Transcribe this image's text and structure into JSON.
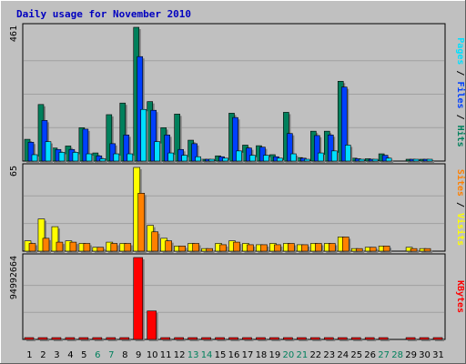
{
  "title": "Daily usage for November 2010",
  "colors": {
    "background": "#c0c0c0",
    "plot": "#c0c0c0",
    "title": "#0000c0",
    "hits": "#00805c",
    "files": "#0040ff",
    "pages": "#00e0ff",
    "visits": "#ffff00",
    "sites": "#ff8000",
    "kbytes": "#ff0000",
    "weekday": "#000000",
    "weekend": "#00805c"
  },
  "chart_data": [
    {
      "type": "bar",
      "title": "Daily usage for November 2010",
      "panel": "hits-files-pages",
      "label_parts": [
        "Pages",
        "Files",
        "Hits"
      ],
      "max_label": "461",
      "ylim": [
        0,
        461
      ],
      "categories": [
        "1",
        "2",
        "3",
        "4",
        "5",
        "6",
        "7",
        "8",
        "9",
        "10",
        "11",
        "12",
        "13",
        "14",
        "15",
        "16",
        "17",
        "18",
        "19",
        "20",
        "21",
        "22",
        "23",
        "24",
        "25",
        "26",
        "27",
        "28",
        "29",
        "30",
        "31"
      ],
      "series": [
        {
          "name": "Hits",
          "values": [
            75,
            195,
            45,
            52,
            115,
            28,
            160,
            200,
            461,
            205,
            115,
            162,
            72,
            5,
            18,
            165,
            55,
            53,
            22,
            168,
            12,
            103,
            103,
            275,
            10,
            8,
            25,
            0,
            6,
            5,
            0
          ]
        },
        {
          "name": "Files",
          "values": [
            65,
            140,
            40,
            40,
            110,
            18,
            60,
            90,
            360,
            175,
            90,
            40,
            60,
            5,
            15,
            150,
            45,
            48,
            15,
            95,
            10,
            88,
            90,
            255,
            8,
            5,
            20,
            0,
            5,
            3,
            0
          ]
        },
        {
          "name": "Pages",
          "values": [
            22,
            67,
            30,
            30,
            25,
            8,
            25,
            25,
            178,
            67,
            28,
            20,
            15,
            3,
            10,
            35,
            20,
            20,
            10,
            25,
            5,
            28,
            35,
            55,
            5,
            3,
            10,
            0,
            3,
            2,
            0
          ]
        }
      ]
    },
    {
      "type": "bar",
      "panel": "visits-sites",
      "label_parts": [
        "Sites",
        "Visits"
      ],
      "max_label": "65",
      "ylim": [
        0,
        65
      ],
      "categories": [
        "1",
        "2",
        "3",
        "4",
        "5",
        "6",
        "7",
        "8",
        "9",
        "10",
        "11",
        "12",
        "13",
        "14",
        "15",
        "16",
        "17",
        "18",
        "19",
        "20",
        "21",
        "22",
        "23",
        "24",
        "25",
        "26",
        "27",
        "28",
        "29",
        "30",
        "31"
      ],
      "series": [
        {
          "name": "Visits",
          "values": [
            8,
            25,
            19,
            8,
            6,
            3,
            7,
            6,
            65,
            20,
            10,
            4,
            6,
            2,
            6,
            8,
            6,
            5,
            6,
            6,
            5,
            6,
            6,
            11,
            2,
            3,
            4,
            0,
            3,
            2,
            0
          ]
        },
        {
          "name": "Sites",
          "values": [
            6,
            10,
            7,
            7,
            6,
            3,
            6,
            6,
            45,
            15,
            8,
            4,
            6,
            2,
            5,
            7,
            5,
            5,
            5,
            6,
            5,
            6,
            6,
            11,
            2,
            3,
            4,
            0,
            2,
            2,
            0
          ]
        }
      ]
    },
    {
      "type": "bar",
      "panel": "kbytes",
      "label_parts": [
        "KBytes"
      ],
      "max_label": "94992664",
      "ylim": [
        0,
        94992664
      ],
      "categories": [
        "1",
        "2",
        "3",
        "4",
        "5",
        "6",
        "7",
        "8",
        "9",
        "10",
        "11",
        "12",
        "13",
        "14",
        "15",
        "16",
        "17",
        "18",
        "19",
        "20",
        "21",
        "22",
        "23",
        "24",
        "25",
        "26",
        "27",
        "28",
        "29",
        "30",
        "31"
      ],
      "series": [
        {
          "name": "KBytes",
          "values": [
            800000,
            800000,
            800000,
            800000,
            800000,
            800000,
            800000,
            800000,
            94992664,
            33000000,
            800000,
            800000,
            800000,
            800000,
            800000,
            800000,
            800000,
            800000,
            800000,
            800000,
            800000,
            800000,
            800000,
            800000,
            800000,
            800000,
            800000,
            0,
            800000,
            800000,
            800000
          ]
        }
      ]
    }
  ],
  "day_labels": [
    "1",
    "2",
    "3",
    "4",
    "5",
    "6",
    "7",
    "8",
    "9",
    "10",
    "11",
    "12",
    "13",
    "14",
    "15",
    "16",
    "17",
    "18",
    "19",
    "20",
    "21",
    "22",
    "23",
    "24",
    "25",
    "26",
    "27",
    "28",
    "29",
    "30",
    "31"
  ],
  "weekend_days": [
    6,
    7,
    13,
    14,
    20,
    21,
    27,
    28
  ]
}
